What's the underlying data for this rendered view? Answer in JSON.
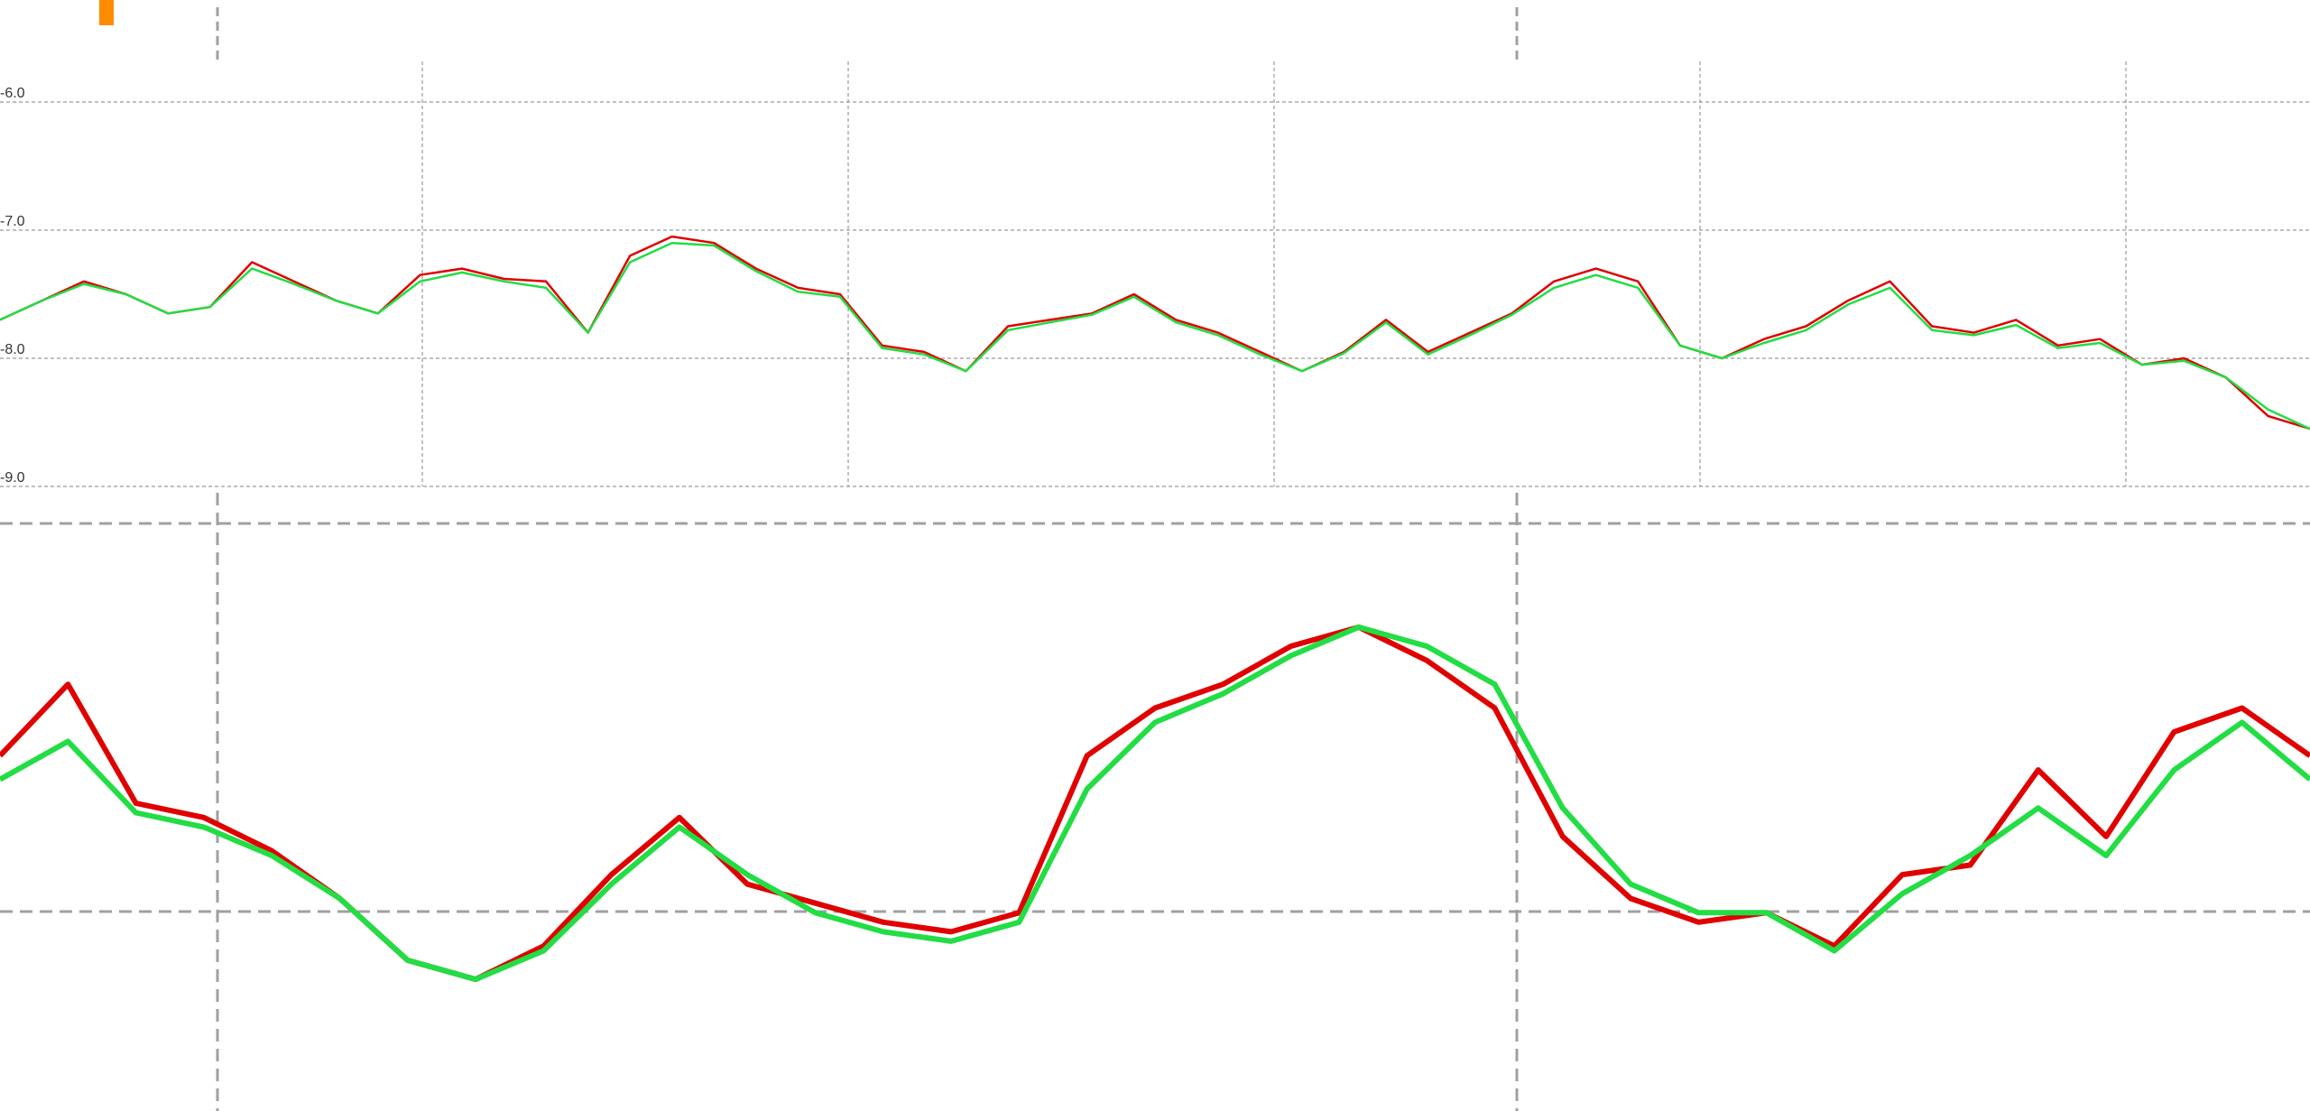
{
  "colors": {
    "background": "#ffffff",
    "series_red": "#e00000",
    "series_green": "#22dd44",
    "grid": "#9a9a9a",
    "dashed": "#a0a0a0",
    "marker_orange": "#ff8c00",
    "tick_text": "#333333"
  },
  "marker": {
    "icon": "orange-marker-icon"
  },
  "chart_data": [
    {
      "type": "line",
      "panel": "overview",
      "title": "",
      "xlabel": "",
      "ylabel": "",
      "y_inverted": true,
      "ylim": [
        -6.0,
        -9.0
      ],
      "yticks": [
        "-6.0",
        "-7.0",
        "-8.0",
        "-9.0"
      ],
      "grid": true,
      "x": [
        0,
        10,
        20,
        30,
        40,
        50,
        60,
        70,
        80,
        90,
        100,
        110,
        120,
        130,
        140,
        150,
        160,
        170,
        180,
        190,
        200,
        210,
        220,
        230,
        240,
        250,
        260,
        270,
        280,
        290,
        300,
        310,
        320,
        330,
        340,
        350,
        360,
        370,
        380,
        390,
        400,
        410,
        420,
        430,
        440,
        450,
        460,
        470,
        480,
        490,
        500,
        510,
        520,
        530,
        540,
        550
      ],
      "series": [
        {
          "name": "",
          "values": [
            -7.7,
            -7.55,
            -7.4,
            -7.5,
            -7.65,
            -7.6,
            -7.25,
            -7.4,
            -7.55,
            -7.65,
            -7.35,
            -7.3,
            -7.38,
            -7.4,
            -7.8,
            -7.2,
            -7.05,
            -7.1,
            -7.3,
            -7.45,
            -7.5,
            -7.9,
            -7.95,
            -8.1,
            -7.75,
            -7.7,
            -7.65,
            -7.5,
            -7.7,
            -7.8,
            -7.95,
            -8.1,
            -7.95,
            -7.7,
            -7.95,
            -7.8,
            -7.65,
            -7.4,
            -7.3,
            -7.4,
            -7.9,
            -8.0,
            -7.85,
            -7.75,
            -7.55,
            -7.4,
            -7.75,
            -7.8,
            -7.7,
            -7.9,
            -7.85,
            -8.05,
            -8.0,
            -8.15,
            -8.45,
            -8.55
          ]
        },
        {
          "name": "",
          "values": [
            -7.7,
            -7.55,
            -7.42,
            -7.5,
            -7.65,
            -7.6,
            -7.3,
            -7.42,
            -7.55,
            -7.65,
            -7.4,
            -7.33,
            -7.4,
            -7.45,
            -7.8,
            -7.25,
            -7.1,
            -7.12,
            -7.32,
            -7.48,
            -7.52,
            -7.92,
            -7.97,
            -8.1,
            -7.78,
            -7.72,
            -7.66,
            -7.52,
            -7.72,
            -7.82,
            -7.97,
            -8.1,
            -7.96,
            -7.72,
            -7.97,
            -7.82,
            -7.66,
            -7.45,
            -7.35,
            -7.45,
            -7.9,
            -8.0,
            -7.88,
            -7.78,
            -7.58,
            -7.45,
            -7.78,
            -7.82,
            -7.74,
            -7.92,
            -7.88,
            -8.05,
            -8.02,
            -8.15,
            -8.4,
            -8.55
          ]
        }
      ]
    },
    {
      "type": "line",
      "panel": "detail",
      "title": "",
      "xlabel": "",
      "ylabel": "",
      "y_inverted": true,
      "ylim": [
        -7.0,
        -8.1
      ],
      "grid": true,
      "x": [
        0,
        10,
        20,
        30,
        40,
        50,
        60,
        70,
        80,
        90,
        100,
        110,
        120,
        130,
        140,
        150,
        160,
        170,
        180,
        190,
        200,
        210,
        220,
        230,
        240,
        250,
        260,
        270,
        280,
        290,
        300,
        310,
        320,
        330,
        340
      ],
      "series": [
        {
          "name": "",
          "values": [
            -7.45,
            -7.3,
            -7.55,
            -7.58,
            -7.65,
            -7.75,
            -7.88,
            -7.92,
            -7.85,
            -7.7,
            -7.58,
            -7.72,
            -7.76,
            -7.8,
            -7.82,
            -7.78,
            -7.45,
            -7.35,
            -7.3,
            -7.22,
            -7.18,
            -7.25,
            -7.35,
            -7.62,
            -7.75,
            -7.8,
            -7.78,
            -7.85,
            -7.7,
            -7.68,
            -7.48,
            -7.62,
            -7.4,
            -7.35,
            -7.45
          ]
        },
        {
          "name": "",
          "values": [
            -7.5,
            -7.42,
            -7.57,
            -7.6,
            -7.66,
            -7.75,
            -7.88,
            -7.92,
            -7.86,
            -7.72,
            -7.6,
            -7.7,
            -7.78,
            -7.82,
            -7.84,
            -7.8,
            -7.52,
            -7.38,
            -7.32,
            -7.24,
            -7.18,
            -7.22,
            -7.3,
            -7.56,
            -7.72,
            -7.78,
            -7.78,
            -7.86,
            -7.74,
            -7.66,
            -7.56,
            -7.66,
            -7.48,
            -7.38,
            -7.5
          ]
        }
      ]
    }
  ]
}
